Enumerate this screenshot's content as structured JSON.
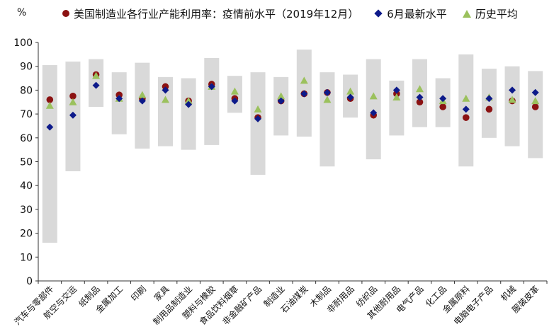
{
  "chart_data": {
    "type": "range-dot",
    "unit": "%",
    "ylim": [
      0,
      100
    ],
    "yticks": [
      0,
      10,
      20,
      30,
      40,
      50,
      60,
      70,
      80,
      90,
      100
    ],
    "categories": [
      "汽车与零部件",
      "航空与交运",
      "纸制品",
      "金属加工",
      "印刷",
      "家具",
      "制用品制造业",
      "塑料与橡胶",
      "食品饮料烟草",
      "非金融矿产品",
      "制造业",
      "石油煤炭",
      "木制品",
      "非耐用品",
      "纺织品",
      "其他耐用品",
      "电气产品",
      "化工品",
      "金属原料",
      "电脑电子产品",
      "机械",
      "服装皮革"
    ],
    "range": {
      "low": [
        16,
        46,
        73,
        61.5,
        55.5,
        56.5,
        55,
        57,
        70.5,
        44.5,
        61,
        60.5,
        48,
        68.5,
        51,
        61,
        64.5,
        64.5,
        48,
        60,
        56.5,
        51.5
      ],
      "high": [
        90.5,
        92,
        93,
        87.5,
        91.5,
        85.5,
        85,
        93.5,
        86,
        87.5,
        85.5,
        97,
        87.5,
        86.5,
        93,
        84,
        93,
        85,
        95,
        89,
        90,
        88
      ]
    },
    "series": [
      {
        "name": "美国制造业各行业产能利用率：疫情前水平（2019年12月）",
        "marker": "circle",
        "color": "#8b1212",
        "values": [
          76,
          77.5,
          86.5,
          78,
          76.5,
          81.5,
          75.5,
          82.5,
          76.5,
          68.5,
          75.5,
          78.5,
          79,
          76.5,
          69.5,
          78.5,
          75,
          73,
          68.5,
          72,
          75.5,
          73
        ]
      },
      {
        "name": "6月最新水平",
        "marker": "diamond",
        "color": "#0d1a8a",
        "values": [
          64.5,
          69.5,
          82,
          76.5,
          75.5,
          80,
          74,
          81.5,
          75.5,
          68,
          75.5,
          78.5,
          79,
          77,
          70.5,
          80,
          77,
          76.5,
          72,
          76.5,
          80,
          79
        ]
      },
      {
        "name": "历史平均",
        "marker": "triangle",
        "color": "#9bc15d",
        "values": [
          73.5,
          75,
          86,
          76.5,
          78,
          76,
          75.5,
          81.5,
          79.5,
          72,
          77.5,
          84,
          76,
          79.5,
          77.5,
          77,
          80.5,
          75.5,
          76.5,
          77,
          76,
          75.5
        ]
      }
    ]
  },
  "colors": {
    "range_bar": "#d9d9d9",
    "axis": "#333333",
    "text": "#111111"
  }
}
